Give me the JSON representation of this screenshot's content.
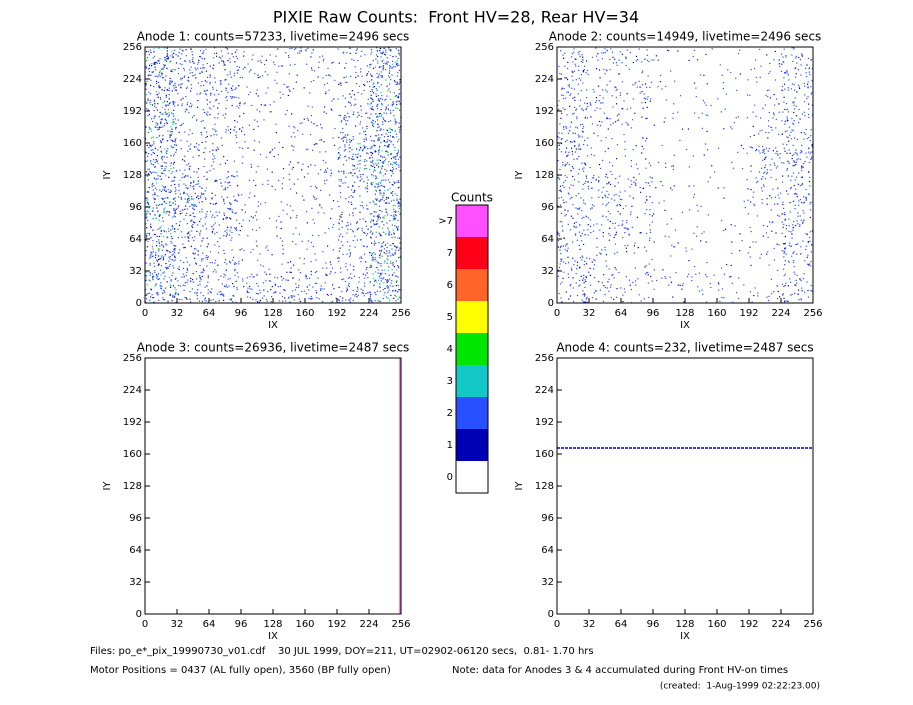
{
  "title": "PIXIE Raw Counts:  Front HV=28, Rear HV=34",
  "colorbar": {
    "title": "Counts",
    "colors": [
      "#ffffff",
      "#0000b4",
      "#2850ff",
      "#14c8c8",
      "#00e600",
      "#ffff00",
      "#ff6428",
      "#ff0019",
      "#ff50ff"
    ],
    "ticks": [
      0,
      1,
      2,
      3,
      4,
      5,
      6,
      7,
      {
        "value": 8,
        "label": ">7"
      }
    ]
  },
  "chart_data": [
    {
      "type": "heatmap",
      "title": "Anode 1: counts=57233, livetime=2496 secs",
      "xlabel": "IX",
      "ylabel": "IY",
      "xlim": [
        0,
        256
      ],
      "ylim": [
        0,
        256
      ],
      "xticks": [
        0,
        32,
        64,
        96,
        128,
        160,
        192,
        224,
        256
      ],
      "yticks": [
        0,
        32,
        64,
        96,
        128,
        160,
        192,
        224,
        256
      ],
      "values": [
        [
          0.6,
          0.4,
          0.3,
          0.15,
          0.15,
          0.15,
          0.2,
          0.6
        ],
        [
          0.6,
          0.3,
          0.35,
          0.1,
          0.1,
          0.1,
          0.2,
          0.6
        ],
        [
          0.6,
          0.2,
          0.2,
          0.1,
          0.1,
          0.1,
          0.35,
          0.6
        ],
        [
          0.6,
          0.2,
          0.15,
          0.1,
          0.1,
          0.15,
          0.5,
          0.7
        ],
        [
          0.6,
          0.5,
          0.3,
          0.1,
          0.1,
          0.1,
          0.3,
          0.6
        ],
        [
          0.6,
          0.4,
          0.35,
          0.1,
          0.1,
          0.1,
          0.3,
          0.6
        ],
        [
          0.6,
          0.3,
          0.2,
          0.1,
          0.1,
          0.1,
          0.25,
          0.6
        ],
        [
          0.6,
          0.4,
          0.3,
          0.3,
          0.3,
          0.3,
          0.35,
          0.6
        ]
      ]
    },
    {
      "type": "heatmap",
      "title": "Anode 2: counts=14949, livetime=2496 secs",
      "xlabel": "IX",
      "ylabel": "IY",
      "xlim": [
        0,
        256
      ],
      "ylim": [
        0,
        256
      ],
      "xticks": [
        0,
        32,
        64,
        96,
        128,
        160,
        192,
        224,
        256
      ],
      "yticks": [
        0,
        32,
        64,
        96,
        128,
        160,
        192,
        224,
        256
      ],
      "values": [
        [
          0.3,
          0.2,
          0.15,
          0.05,
          0.05,
          0.05,
          0.1,
          0.3
        ],
        [
          0.3,
          0.2,
          0.2,
          0.05,
          0.05,
          0.05,
          0.1,
          0.3
        ],
        [
          0.3,
          0.15,
          0.1,
          0.05,
          0.05,
          0.05,
          0.15,
          0.3
        ],
        [
          0.3,
          0.1,
          0.1,
          0.05,
          0.05,
          0.05,
          0.3,
          0.4
        ],
        [
          0.3,
          0.3,
          0.2,
          0.05,
          0.05,
          0.05,
          0.2,
          0.3
        ],
        [
          0.3,
          0.2,
          0.2,
          0.05,
          0.05,
          0.05,
          0.1,
          0.3
        ],
        [
          0.3,
          0.15,
          0.1,
          0.05,
          0.05,
          0.05,
          0.1,
          0.3
        ],
        [
          0.3,
          0.2,
          0.15,
          0.1,
          0.1,
          0.1,
          0.1,
          0.3
        ]
      ]
    },
    {
      "type": "heatmap",
      "title": "Anode 3: counts=26936, livetime=2487 secs",
      "xlabel": "IX",
      "ylabel": "IY",
      "xlim": [
        0,
        256
      ],
      "ylim": [
        0,
        256
      ],
      "xticks": [
        0,
        32,
        64,
        96,
        128,
        160,
        192,
        224,
        256
      ],
      "yticks": [
        0,
        32,
        64,
        96,
        128,
        160,
        192,
        224,
        256
      ],
      "lines": [
        {
          "x": 255,
          "color": "#ff50ff"
        }
      ]
    },
    {
      "type": "heatmap",
      "title": "Anode 4: counts=232, livetime=2487 secs",
      "xlabel": "IX",
      "ylabel": "IY",
      "xlim": [
        0,
        256
      ],
      "ylim": [
        0,
        256
      ],
      "xticks": [
        0,
        32,
        64,
        96,
        128,
        160,
        192,
        224,
        256
      ],
      "yticks": [
        0,
        32,
        64,
        96,
        128,
        160,
        192,
        224,
        256
      ],
      "lines": [
        {
          "y": 166,
          "color": "#0000b4"
        }
      ]
    }
  ],
  "footer": {
    "files": "Files: po_e*_pix_19990730_v01.cdf    30 JUL 1999, DOY=211, UT=02902-06120 secs,  0.81- 1.70 hrs",
    "motor": "Motor Positions = 0437 (AL fully open), 3560 (BP fully open)",
    "note": "Note: data for Anodes 3 & 4 accumulated during Front HV-on times",
    "created": "(created:  1-Aug-1999 02:22:23.00)"
  }
}
